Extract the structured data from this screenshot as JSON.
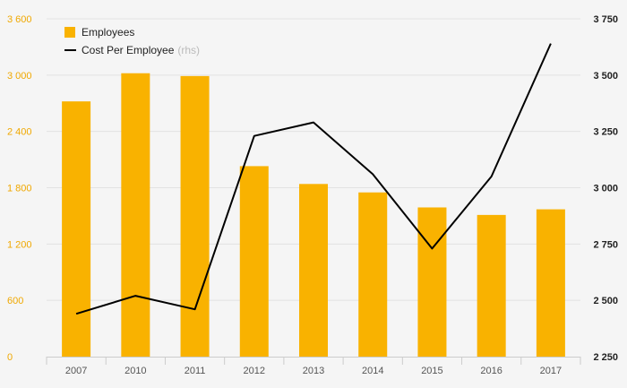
{
  "chart_data": {
    "type": "bar",
    "categories": [
      "2007",
      "2010",
      "2011",
      "2012",
      "2013",
      "2014",
      "2015",
      "2016",
      "2017"
    ],
    "series": [
      {
        "name": "Employees",
        "type": "bar",
        "axis": "left",
        "color": "#f9b200",
        "values": [
          2720,
          3020,
          2990,
          2030,
          1840,
          1750,
          1590,
          1510,
          1570
        ]
      },
      {
        "name": "Cost Per Employee",
        "legend_note": "(rhs)",
        "type": "line",
        "axis": "right",
        "color": "#000000",
        "values": [
          2440,
          2520,
          2460,
          3230,
          3290,
          3060,
          2730,
          3050,
          3640
        ]
      }
    ],
    "y_left": {
      "ylim": [
        0,
        3600
      ],
      "ticks": [
        0,
        600,
        1200,
        1800,
        2400,
        3000,
        3600
      ],
      "tick_labels": [
        "0",
        "600",
        "1 200",
        "1 800",
        "2 400",
        "3 000",
        "3 600"
      ],
      "color": "#f0a800"
    },
    "y_right": {
      "ylim": [
        2250,
        3750
      ],
      "ticks": [
        2250,
        2500,
        2750,
        3000,
        3250,
        3500,
        3750
      ],
      "tick_labels": [
        "2 250",
        "2 500",
        "2 750",
        "3 000",
        "3 250",
        "3 500",
        "3 750"
      ],
      "color": "#222222"
    },
    "grid": true,
    "legend_position": "top-left",
    "title": "",
    "xlabel": "",
    "ylabel": ""
  }
}
